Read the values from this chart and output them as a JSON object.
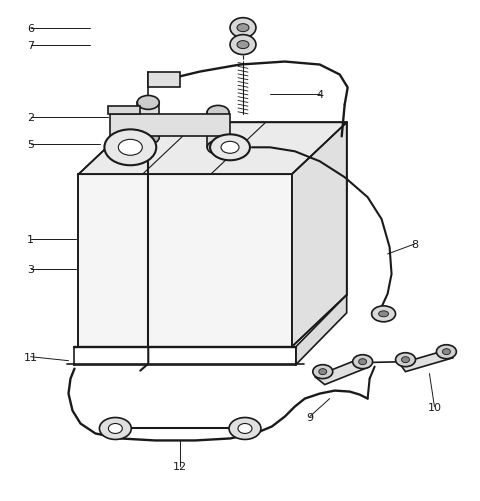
{
  "bg_color": "#ffffff",
  "lc": "#1a1a1a",
  "lw": 1.2,
  "tlw": 0.8,
  "label_fs": 8,
  "figsize": [
    4.8,
    5.02
  ],
  "dpi": 100
}
